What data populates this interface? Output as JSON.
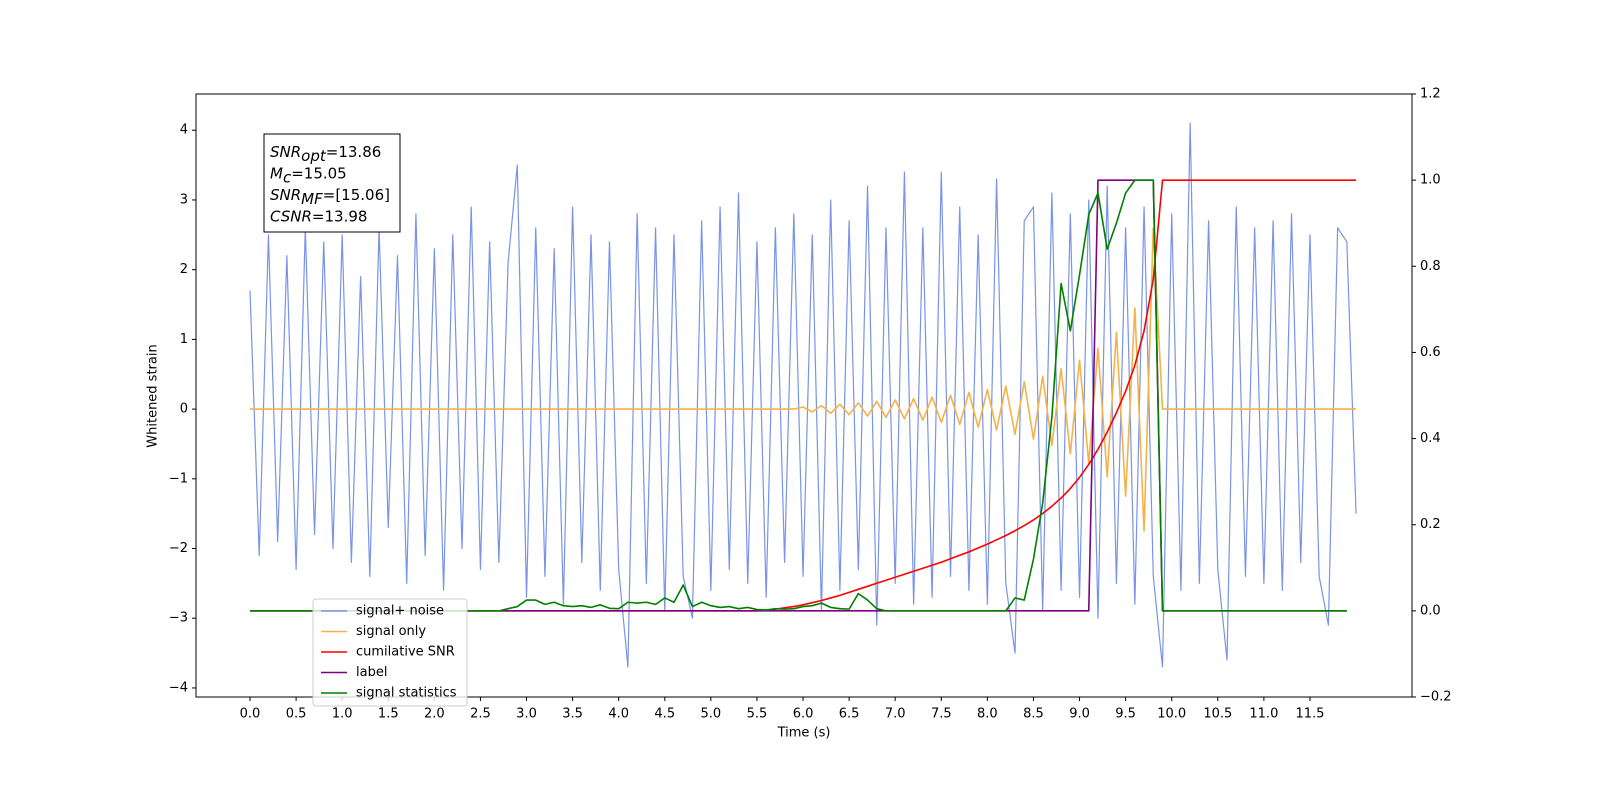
{
  "chart_data": {
    "type": "line",
    "xlabel": "Time (s)",
    "ylabel": "Whitened strain",
    "xlim": [
      -0.586,
      12.607
    ],
    "ylim": [
      -4.13,
      4.52
    ],
    "y2lim": [
      -0.2,
      1.2
    ],
    "xticks": [
      {
        "value": 0,
        "label": "0.0"
      },
      0.5,
      {
        "value": 1,
        "label": "1.0"
      },
      1.5,
      {
        "value": 2,
        "label": "2.0"
      },
      2.5,
      {
        "value": 3,
        "label": "3.0"
      },
      3.5,
      {
        "value": 4,
        "label": "4.0"
      },
      4.5,
      {
        "value": 5,
        "label": "5.0"
      },
      5.5,
      {
        "value": 6,
        "label": "6.0"
      },
      6.5,
      {
        "value": 7,
        "label": "7.0"
      },
      7.5,
      {
        "value": 8,
        "label": "8.0"
      },
      8.5,
      {
        "value": 9,
        "label": "9.0"
      },
      9.5,
      {
        "value": 10,
        "label": "10.0"
      },
      10.5,
      {
        "value": 11,
        "label": "11.0"
      },
      11.5
    ],
    "yticks": [
      {
        "value": -4,
        "label": "−4"
      },
      {
        "value": -3,
        "label": "−3"
      },
      {
        "value": -2,
        "label": "−2"
      },
      {
        "value": -1,
        "label": "−1"
      },
      0,
      1,
      2,
      3,
      4
    ],
    "y2ticks": [
      {
        "value": -0.2,
        "label": "−0.2"
      },
      {
        "value": 0,
        "label": "0.0"
      },
      0.2,
      0.4,
      0.6,
      0.8,
      {
        "value": 1,
        "label": "1.0"
      },
      1.2
    ],
    "legend": "lower left",
    "annotation": [
      {
        "name": "SNR",
        "sub": "opt",
        "text": "=13.86"
      },
      {
        "name": "M",
        "sub": "c",
        "text": "=15.05"
      },
      {
        "name": "SNR",
        "sub": "MF",
        "text": "=[15.06]"
      },
      {
        "name": "CSNR",
        "text": "=13.98"
      }
    ],
    "x": [
      0,
      0.1,
      0.2,
      0.3,
      0.4,
      0.5,
      0.6,
      0.7,
      0.8,
      0.9,
      1,
      1.1,
      1.2,
      1.3,
      1.4,
      1.5,
      1.6,
      1.7,
      1.8,
      1.9,
      2,
      2.1,
      2.2,
      2.3,
      2.4,
      2.5,
      2.6,
      2.7,
      2.8,
      2.9,
      3,
      3.1,
      3.2,
      3.3,
      3.4,
      3.5,
      3.6,
      3.7,
      3.8,
      3.9,
      4,
      4.1,
      4.2,
      4.3,
      4.4,
      4.5,
      4.6,
      4.7,
      4.8,
      4.9,
      5,
      5.1,
      5.2,
      5.3,
      5.4,
      5.5,
      5.6,
      5.7,
      5.8,
      5.9,
      6,
      6.1,
      6.2,
      6.3,
      6.4,
      6.5,
      6.6,
      6.7,
      6.8,
      6.9,
      7,
      7.1,
      7.2,
      7.3,
      7.4,
      7.5,
      7.6,
      7.7,
      7.8,
      7.9,
      8,
      8.1,
      8.2,
      8.3,
      8.4,
      8.5,
      8.6,
      8.7,
      8.8,
      8.9,
      9,
      9.1,
      9.2,
      9.3,
      9.4,
      9.5,
      9.6,
      9.7,
      9.8,
      9.9,
      10,
      10.1,
      10.2,
      10.3,
      10.4,
      10.5,
      10.6,
      10.7,
      10.8,
      10.9,
      11,
      11.1,
      11.2,
      11.3,
      11.4,
      11.5,
      11.6,
      11.7,
      11.8,
      11.9,
      12
    ],
    "series": [
      {
        "name": "signal+ noise",
        "color": "#7893e8",
        "values": [
          1.7,
          -2.1,
          2.5,
          -1.9,
          2.2,
          -2.3,
          2.6,
          -1.8,
          2.4,
          -2.0,
          2.5,
          -2.2,
          1.9,
          -2.4,
          2.6,
          -1.7,
          2.2,
          -2.5,
          2.8,
          -2.1,
          2.3,
          -2.6,
          2.5,
          -2.0,
          2.9,
          -2.3,
          2.4,
          -2.2,
          2.1,
          3.5,
          -2.7,
          2.6,
          -2.4,
          2.3,
          -2.8,
          2.9,
          -2.2,
          2.5,
          -2.6,
          2.4,
          -2.3,
          -3.7,
          2.8,
          -2.5,
          2.6,
          -2.9,
          2.5,
          -2.4,
          -3.0,
          2.7,
          -2.6,
          2.9,
          -2.3,
          3.1,
          -2.5,
          2.4,
          -2.7,
          2.6,
          -2.2,
          2.8,
          -2.4,
          2.5,
          -2.9,
          3.0,
          -2.6,
          2.7,
          -2.3,
          3.2,
          -3.1,
          2.6,
          -2.5,
          3.4,
          -2.8,
          2.6,
          -2.7,
          3.4,
          -2.4,
          2.9,
          -2.6,
          2.5,
          -2.8,
          3.3,
          -2.5,
          -3.5,
          2.7,
          2.9,
          -2.9,
          3.1,
          -2.6,
          2.8,
          -2.7,
          3.0,
          -3.0,
          3.2,
          -2.5,
          2.6,
          -2.8,
          2.9,
          -2.4,
          -3.7,
          2.8,
          -2.6,
          4.1,
          -2.5,
          2.7,
          -2.3,
          -3.6,
          2.9,
          -2.4,
          2.6,
          -2.5,
          2.7,
          -2.6,
          2.8,
          -2.2,
          2.5,
          -2.4,
          -3.1,
          2.6,
          2.4,
          -1.5
        ]
      },
      {
        "name": "signal only",
        "color": "#f5b24a",
        "values": [
          0,
          0,
          0,
          0,
          0,
          0,
          0,
          0,
          0,
          0,
          0,
          0,
          0,
          0,
          0,
          0,
          0,
          0,
          0,
          0,
          0,
          0,
          0,
          0,
          0,
          0,
          0,
          0,
          0,
          0,
          0,
          0,
          0,
          0,
          0,
          0,
          0,
          0,
          0,
          0,
          0,
          0,
          0,
          0,
          0,
          0,
          0,
          0,
          0,
          0,
          0,
          0,
          0,
          0,
          0,
          0,
          0,
          0,
          0,
          0,
          0.03,
          -0.04,
          0.05,
          -0.06,
          0.07,
          -0.08,
          0.09,
          -0.1,
          0.11,
          -0.12,
          0.13,
          -0.14,
          0.15,
          -0.16,
          0.17,
          -0.19,
          0.2,
          -0.22,
          0.24,
          -0.26,
          0.28,
          -0.3,
          0.33,
          -0.36,
          0.39,
          -0.43,
          0.47,
          -0.52,
          0.58,
          -0.64,
          0.7,
          -0.78,
          0.87,
          -0.97,
          1.1,
          -1.25,
          1.45,
          -1.75,
          2.6,
          0,
          0,
          0,
          0,
          0,
          0,
          0,
          0,
          0,
          0,
          0,
          0,
          0,
          0,
          0,
          0,
          0,
          0,
          0,
          0,
          0,
          0
        ]
      },
      {
        "name": "cumilative SNR",
        "color": "#ff0000",
        "axis": "y2",
        "values": [
          0,
          0,
          0,
          0,
          0,
          0,
          0,
          0,
          0,
          0,
          0,
          0,
          0,
          0,
          0,
          0,
          0,
          0,
          0,
          0,
          0,
          0,
          0,
          0,
          0,
          0,
          0,
          0,
          0,
          0,
          0,
          0,
          0,
          0,
          0,
          0,
          0,
          0,
          0,
          0,
          0,
          0,
          0,
          0,
          0,
          0,
          0,
          0,
          0,
          0,
          0,
          0,
          0,
          0,
          0,
          0,
          0.002,
          0.004,
          0.007,
          0.01,
          0.014,
          0.019,
          0.024,
          0.03,
          0.036,
          0.043,
          0.05,
          0.057,
          0.064,
          0.071,
          0.078,
          0.085,
          0.092,
          0.099,
          0.106,
          0.113,
          0.121,
          0.129,
          0.137,
          0.146,
          0.155,
          0.165,
          0.175,
          0.186,
          0.198,
          0.211,
          0.226,
          0.243,
          0.262,
          0.284,
          0.31,
          0.34,
          0.375,
          0.415,
          0.46,
          0.51,
          0.57,
          0.65,
          0.77,
          1,
          1,
          1,
          1,
          1,
          1,
          1,
          1,
          1,
          1,
          1,
          1,
          1,
          1,
          1,
          1,
          1,
          1,
          1,
          1,
          1,
          1
        ]
      },
      {
        "name": "label",
        "color": "#800080",
        "axis": "y2",
        "values": [
          0,
          0,
          0,
          0,
          0,
          0,
          0,
          0,
          0,
          0,
          0,
          0,
          0,
          0,
          0,
          0,
          0,
          0,
          0,
          0,
          0,
          0,
          0,
          0,
          0,
          0,
          0,
          0,
          0,
          0,
          0,
          0,
          0,
          0,
          0,
          0,
          0,
          0,
          0,
          0,
          0,
          0,
          0,
          0,
          0,
          0,
          0,
          0,
          0,
          0,
          0,
          0,
          0,
          0,
          0,
          0,
          0,
          0,
          0,
          0,
          0,
          0,
          0,
          0,
          0,
          0,
          0,
          0,
          0,
          0,
          0,
          0,
          0,
          0,
          0,
          0,
          0,
          0,
          0,
          0,
          0,
          0,
          0,
          0,
          0,
          0,
          0,
          0,
          0,
          0,
          0,
          0,
          1,
          1,
          1,
          1,
          1,
          1,
          1,
          0,
          0,
          0,
          0,
          0,
          0,
          0,
          0,
          0,
          0,
          0,
          0,
          0,
          0,
          0,
          0,
          0,
          0,
          0,
          0,
          0,
          null
        ]
      },
      {
        "name": "signal statistics",
        "color": "#008000",
        "axis": "y2",
        "values": [
          0,
          0,
          0,
          0,
          0,
          0,
          0,
          0,
          0,
          0,
          0,
          0,
          0,
          0,
          0,
          0,
          0,
          0,
          0,
          0,
          0,
          0,
          0,
          0,
          0,
          0,
          0,
          0,
          0.005,
          0.01,
          0.025,
          0.025,
          0.015,
          0.02,
          0.012,
          0.01,
          0.012,
          0.008,
          0.014,
          0.006,
          0.005,
          0.02,
          0.018,
          0.02,
          0.015,
          0.03,
          0.02,
          0.06,
          0.01,
          0.02,
          0.012,
          0.008,
          0.01,
          0.005,
          0.008,
          0.003,
          0.002,
          0.005,
          0.004,
          0.005,
          0.01,
          0.012,
          0.018,
          0.008,
          0.005,
          0.004,
          0.04,
          0.025,
          0.005,
          0,
          0,
          0,
          0,
          0,
          0,
          0,
          0,
          0,
          0,
          0,
          0,
          0,
          0,
          0.03,
          0.025,
          0.12,
          0.25,
          0.45,
          0.76,
          0.65,
          0.78,
          0.92,
          0.97,
          0.84,
          0.9,
          0.97,
          1,
          1,
          1,
          0,
          0,
          0,
          0,
          0,
          0,
          0,
          0,
          0,
          0,
          0,
          0,
          0,
          0,
          0,
          0,
          0,
          0,
          0,
          0,
          0,
          null
        ]
      }
    ]
  }
}
